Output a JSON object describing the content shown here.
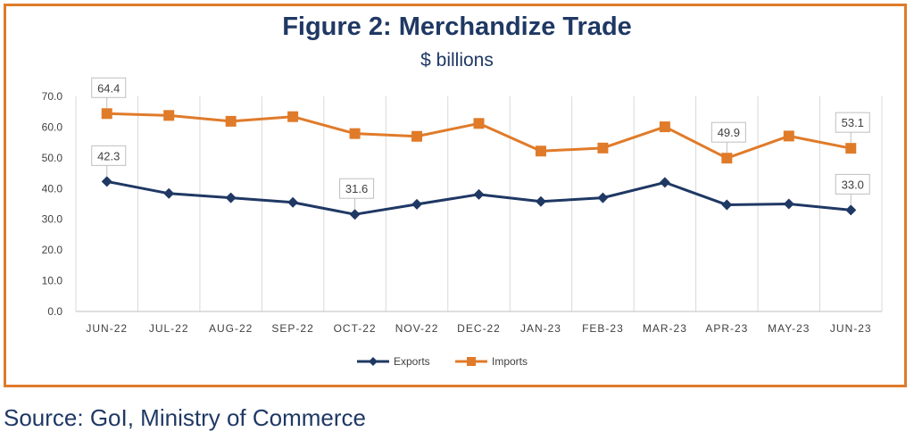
{
  "chart_data": {
    "type": "line",
    "title": "Figure 2: Merchandize Trade",
    "subtitle": "$ billions",
    "categories": [
      "JUN-22",
      "JUL-22",
      "AUG-22",
      "SEP-22",
      "OCT-22",
      "NOV-22",
      "DEC-22",
      "JAN-23",
      "FEB-23",
      "MAR-23",
      "APR-23",
      "MAY-23",
      "JUN-23"
    ],
    "ylim": [
      0,
      70
    ],
    "yticks": [
      "0.0",
      "10.0",
      "20.0",
      "30.0",
      "40.0",
      "50.0",
      "60.0",
      "70.0"
    ],
    "grid": "vertical",
    "legend_position": "bottom",
    "series": [
      {
        "name": "Exports",
        "color": "#1F3864",
        "marker": "diamond",
        "values": [
          42.3,
          38.4,
          37.0,
          35.5,
          31.6,
          34.9,
          38.1,
          35.8,
          37.0,
          42.0,
          34.7,
          35.0,
          33.0
        ],
        "labels": {
          "0": "42.3",
          "4": "31.6",
          "12": "33.0"
        }
      },
      {
        "name": "Imports",
        "color": "#E07B2A",
        "marker": "square",
        "values": [
          64.4,
          63.8,
          61.9,
          63.4,
          57.9,
          57.0,
          61.2,
          52.2,
          53.2,
          60.1,
          49.9,
          57.1,
          53.1
        ],
        "labels": {
          "0": "64.4",
          "10": "49.9",
          "12": "53.1"
        }
      }
    ]
  },
  "footer": {
    "source": "Source: GoI, Ministry of Commerce"
  }
}
